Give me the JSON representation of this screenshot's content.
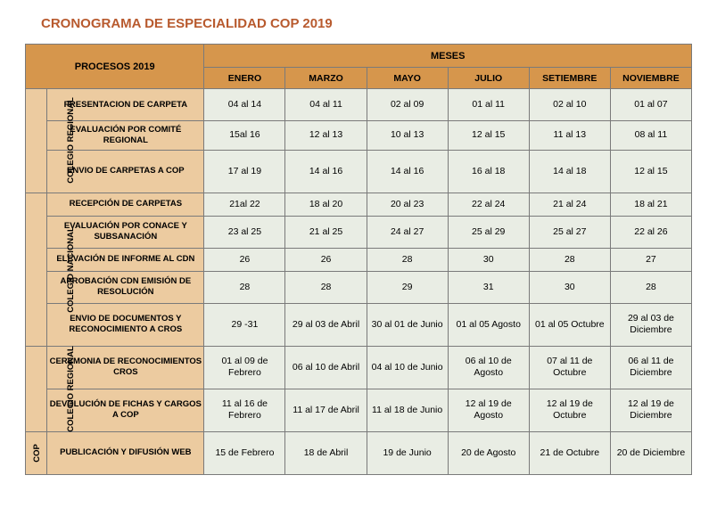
{
  "title": "CRONOGRAMA DE ESPECIALIDAD COP  2019",
  "headers": {
    "procesos": "PROCESOS 2019",
    "meses": "MESES",
    "months": [
      "ENERO",
      "MARZO",
      "MAYO",
      "JULIO",
      "SETIEMBRE",
      "NOVIEMBRE"
    ]
  },
  "groups": [
    {
      "label": "COLEGIO REGIONAL",
      "rows": [
        {
          "proc": "PRESENTACION DE CARPETA",
          "cells": [
            "04 al 14",
            "04 al 11",
            "02 al 09",
            "01 al 11",
            "02 al 10",
            "01 al 07"
          ],
          "h": "r-med"
        },
        {
          "proc": "EVALUACIÓN POR COMITÉ REGIONAL",
          "cells": [
            "15al 16",
            "12 al 13",
            "10 al 13",
            "12 al 15",
            "11 al 13",
            "08 al 11"
          ],
          "h": "r-narrow"
        },
        {
          "proc": "ENVIO DE CARPETAS A COP",
          "cells": [
            "17 al 19",
            "14 al 16",
            "14 al 16",
            "16 al 18",
            "14 al 18",
            "12 al 15"
          ],
          "h": "r-tall"
        }
      ]
    },
    {
      "label": "COLEGIO NACIONAL",
      "rows": [
        {
          "proc": "RECEPCIÓN DE CARPETAS",
          "cells": [
            "21al 22",
            "18 al 20",
            "20 al 23",
            "22 al 24",
            "21 al 24",
            "18 al 21"
          ],
          "h": "r-narrow"
        },
        {
          "proc": "EVALUACIÓN POR CONACE Y SUBSANACIÓN",
          "cells": [
            "23 al 25",
            "21 al 25",
            "24 al 27",
            "25 al 29",
            "25 al 27",
            "22 al 26"
          ],
          "h": "r-med"
        },
        {
          "proc": "ELEVACIÓN DE INFORME AL CDN",
          "cells": [
            "26",
            "26",
            "28",
            "30",
            "28",
            "27"
          ],
          "h": "r-narrow"
        },
        {
          "proc": "APROBACIÓN CDN EMISIÓN DE RESOLUCIÓN",
          "cells": [
            "28",
            "28",
            "29",
            "31",
            "30",
            "28"
          ],
          "h": "r-med"
        },
        {
          "proc": "ENVIO DE DOCUMENTOS Y RECONOCIMIENTO A CROS",
          "cells": [
            "29 -31",
            "29 al 03 de Abril",
            "30 al 01 de Junio",
            "01 al 05 Agosto",
            "01 al 05 Octubre",
            "29 al 03 de Diciembre"
          ],
          "h": "r-tall"
        }
      ]
    },
    {
      "label": "COLEGIO REGIONAL",
      "rows": [
        {
          "proc": "CEREMONIA DE RECONOCIMIENTOS CROS",
          "cells": [
            "01 al 09 de Febrero",
            "06 al 10 de Abril",
            "04 al 10 de Junio",
            "06 al 10 de Agosto",
            "07 al 11 de Octubre",
            "06 al 11 de Diciembre"
          ],
          "h": "r-tall"
        },
        {
          "proc": "DEVOLUCIÓN DE FICHAS Y CARGOS A COP",
          "cells": [
            "11 al 16 de Febrero",
            "11 al 17 de Abril",
            "11 al 18 de Junio",
            "12 al 19 de Agosto",
            "12 al 19 de Octubre",
            "12 al 19 de Diciembre"
          ],
          "h": "r-tall"
        }
      ]
    },
    {
      "label": "COP",
      "rows": [
        {
          "proc": "PUBLICACIÓN Y DIFUSIÓN WEB",
          "cells": [
            "15 de Febrero",
            "18 de Abril",
            "19 de Junio",
            "20 de Agosto",
            "21 de Octubre",
            "20 de Diciembre"
          ],
          "h": "r-tall"
        }
      ]
    }
  ],
  "colors": {
    "title": "#b85a2e",
    "header_bg": "#d6964c",
    "label_bg": "#eccba0",
    "cell_bg": "#e9ede4",
    "border": "#7a7a7a"
  }
}
